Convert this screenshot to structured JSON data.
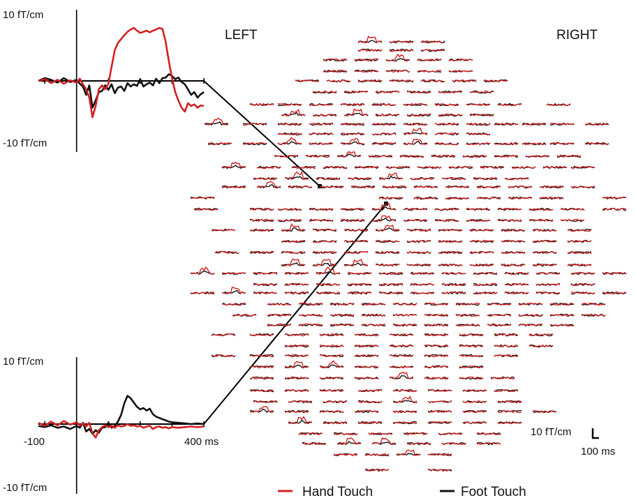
{
  "labels": {
    "left": "LEFT",
    "right": "RIGHT",
    "top_ymax": "10 fT/cm",
    "top_ymin": "-10 fT/cm",
    "bottom_ymax": "10 fT/cm",
    "bottom_ymin": "-10 fT/cm",
    "bottom_xmin": "-100",
    "bottom_xmax": "400 ms",
    "scale_amp": "10 fT/cm",
    "scale_time": "100 ms"
  },
  "legend": {
    "hand": "Hand Touch",
    "foot": "Foot Touch"
  },
  "colors": {
    "hand": "#d42020",
    "foot": "#111111"
  },
  "chart_data": [
    {
      "type": "line",
      "title": "",
      "xlabel": "",
      "ylabel": "",
      "xlim": [
        -120,
        400
      ],
      "ylim": [
        -10,
        10
      ],
      "xticks": [
        -100,
        0,
        100,
        200,
        300,
        400
      ],
      "series": [
        {
          "name": "Hand Touch",
          "x": [
            -120,
            -100,
            -80,
            -60,
            -40,
            -20,
            0,
            10,
            20,
            30,
            40,
            50,
            60,
            70,
            80,
            90,
            100,
            110,
            120,
            130,
            140,
            150,
            160,
            170,
            180,
            190,
            200,
            210,
            220,
            230,
            240,
            250,
            260,
            270,
            280,
            290,
            300,
            310,
            320,
            330,
            340,
            350,
            360,
            370,
            380,
            390,
            400
          ],
          "values": [
            0,
            0.3,
            -0.4,
            0.2,
            -0.5,
            0.1,
            -0.3,
            0.4,
            -0.6,
            -1.5,
            -3.0,
            -6.5,
            -4.5,
            -1.5,
            -0.8,
            -1.5,
            -0.5,
            2.5,
            5.5,
            6.8,
            7.5,
            8.2,
            8.8,
            9.2,
            9.5,
            9.0,
            8.6,
            8.8,
            9.0,
            8.7,
            9.0,
            9.2,
            9.5,
            9.3,
            7.0,
            3.5,
            0.5,
            -2.0,
            -3.5,
            -4.8,
            -5.5,
            -4.0,
            -4.5,
            -4.2,
            -4.8,
            -4.4,
            -4.5
          ]
        },
        {
          "name": "Foot Touch",
          "x": [
            -120,
            -100,
            -80,
            -60,
            -40,
            -20,
            0,
            10,
            20,
            30,
            40,
            50,
            60,
            70,
            80,
            90,
            100,
            110,
            120,
            130,
            140,
            150,
            160,
            170,
            180,
            190,
            200,
            210,
            220,
            230,
            240,
            250,
            260,
            270,
            280,
            290,
            300,
            310,
            320,
            330,
            340,
            350,
            360,
            370,
            380,
            390,
            400
          ],
          "values": [
            0,
            0.5,
            0.2,
            -0.3,
            0.5,
            -0.2,
            0.2,
            -0.5,
            -1.0,
            -2.5,
            -0.8,
            -4.8,
            -3.5,
            -2.0,
            -1.8,
            -0.8,
            -1.6,
            -0.6,
            -2.2,
            -1.2,
            -1.0,
            -1.8,
            -0.4,
            -1.0,
            -0.6,
            -0.9,
            0.3,
            -1.0,
            -0.6,
            -0.3,
            -0.8,
            0.4,
            -0.4,
            0.5,
            0.6,
            1.2,
            0.9,
            0.3,
            0.6,
            -0.2,
            -0.6,
            -1.5,
            -2.5,
            -2.0,
            -3.0,
            -2.4,
            -2.0
          ]
        }
      ]
    },
    {
      "type": "line",
      "title": "",
      "xlabel": "",
      "ylabel": "",
      "xlim": [
        -120,
        400
      ],
      "ylim": [
        -10,
        10
      ],
      "xticks": [
        -100,
        0,
        100,
        200,
        300,
        400
      ],
      "series": [
        {
          "name": "Hand Touch",
          "x": [
            -120,
            -100,
            -80,
            -60,
            -40,
            -20,
            0,
            10,
            20,
            30,
            40,
            50,
            60,
            70,
            80,
            90,
            100,
            110,
            120,
            130,
            140,
            150,
            160,
            170,
            180,
            190,
            200,
            210,
            220,
            230,
            240,
            250,
            260,
            270,
            280,
            290,
            300,
            320,
            340,
            360,
            380,
            400
          ],
          "values": [
            0.2,
            -0.3,
            0.4,
            -0.2,
            0.5,
            -0.1,
            0.3,
            -0.2,
            0.1,
            -0.4,
            0.2,
            -1.5,
            -2.2,
            -1.0,
            -0.5,
            -0.2,
            -0.5,
            -0.3,
            -0.6,
            -0.2,
            -0.4,
            -0.3,
            0,
            -0.3,
            -0.2,
            -0.4,
            -0.3,
            -0.6,
            -0.4,
            -0.3,
            -0.8,
            -0.5,
            -0.4,
            -0.6,
            -0.5,
            -0.7,
            -0.5,
            -0.6,
            -0.5,
            -0.4,
            -0.5,
            -0.4
          ]
        },
        {
          "name": "Foot Touch",
          "x": [
            -120,
            -100,
            -80,
            -60,
            -40,
            -20,
            0,
            10,
            20,
            30,
            40,
            50,
            60,
            70,
            80,
            90,
            100,
            110,
            120,
            130,
            140,
            150,
            160,
            170,
            180,
            190,
            200,
            210,
            220,
            230,
            240,
            250,
            260,
            270,
            280,
            290,
            300,
            320,
            340,
            360,
            380,
            400
          ],
          "values": [
            -0.3,
            -0.5,
            -0.2,
            -0.6,
            -0.4,
            -0.8,
            -0.3,
            -0.6,
            0.2,
            -1.2,
            -0.8,
            -1.6,
            -1.0,
            -1.4,
            -0.6,
            -0.5,
            0.2,
            -0.6,
            -0.3,
            0.4,
            1.5,
            3.4,
            4.6,
            4.2,
            3.5,
            2.8,
            2.4,
            2.6,
            2.2,
            2.5,
            1.6,
            1.2,
            1.0,
            0.8,
            0.6,
            0.4,
            0.3,
            0.2,
            0.1,
            0,
            0.1,
            0
          ]
        }
      ]
    }
  ]
}
